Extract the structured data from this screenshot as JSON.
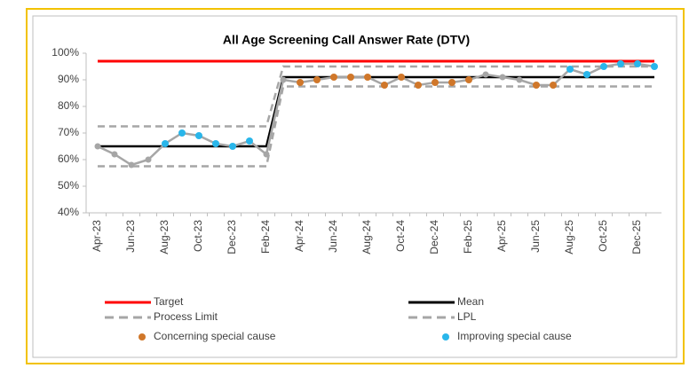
{
  "chart_data": {
    "type": "line",
    "title": "All Age Screening Call Answer Rate (DTV)",
    "categories": [
      "Apr-23",
      null,
      "Jun-23",
      null,
      "Aug-23",
      null,
      "Oct-23",
      null,
      "Dec-23",
      null,
      "Feb-24",
      null,
      "Apr-24",
      null,
      "Jun-24",
      null,
      "Aug-24",
      null,
      "Oct-24",
      null,
      "Dec-24",
      null,
      "Feb-25",
      null,
      "Apr-25",
      null,
      "Jun-25",
      null,
      "Aug-25",
      null,
      "Oct-25",
      null,
      "Dec-25",
      null
    ],
    "values": [
      65,
      62,
      58,
      60,
      66,
      70,
      69,
      66,
      65,
      67,
      62,
      90,
      89,
      90,
      91,
      91,
      91,
      88,
      91,
      88,
      89,
      89,
      90,
      92,
      91,
      90,
      88,
      88,
      94,
      92,
      95,
      96,
      96,
      95
    ],
    "color": "#a6a6a6",
    "series": [
      {
        "name": "Target",
        "color": "#ff0000",
        "style": "solid",
        "values": [
          97,
          97,
          97,
          97,
          97,
          97,
          97,
          97,
          97,
          97,
          97,
          97,
          97,
          97,
          97,
          97,
          97,
          97,
          97,
          97,
          97,
          97,
          97,
          97,
          97,
          97,
          97,
          97,
          97,
          97,
          97,
          97,
          97,
          97
        ]
      },
      {
        "name": "Mean",
        "color": "#000000",
        "style": "solid",
        "values": [
          65,
          65,
          65,
          65,
          65,
          65,
          65,
          65,
          65,
          65,
          65,
          91,
          91,
          91,
          91,
          91,
          91,
          91,
          91,
          91,
          91,
          91,
          91,
          91,
          91,
          91,
          91,
          91,
          91,
          91,
          91,
          91,
          91,
          91
        ]
      },
      {
        "name": "Process Limit",
        "color": "#a6a6a6",
        "style": "dashed",
        "values": [
          72.5,
          72.5,
          72.5,
          72.5,
          72.5,
          72.5,
          72.5,
          72.5,
          72.5,
          72.5,
          72.5,
          95,
          95,
          95,
          95,
          95,
          95,
          95,
          95,
          95,
          95,
          95,
          95,
          95,
          95,
          95,
          95,
          95,
          95,
          95,
          95,
          95,
          95,
          95
        ]
      },
      {
        "name": "LPL",
        "color": "#a6a6a6",
        "style": "dashed",
        "values": [
          57.5,
          57.5,
          57.5,
          57.5,
          57.5,
          57.5,
          57.5,
          57.5,
          57.5,
          57.5,
          57.5,
          87.5,
          87.5,
          87.5,
          87.5,
          87.5,
          87.5,
          87.5,
          87.5,
          87.5,
          87.5,
          87.5,
          87.5,
          87.5,
          87.5,
          87.5,
          87.5,
          87.5,
          87.5,
          87.5,
          87.5,
          87.5,
          87.5,
          87.5
        ]
      },
      {
        "name": "Concerning special cause",
        "color": "#d0772a",
        "style": "points",
        "values": [
          null,
          null,
          null,
          null,
          null,
          null,
          null,
          null,
          null,
          null,
          null,
          null,
          89,
          90,
          91,
          91,
          91,
          88,
          91,
          88,
          89,
          89,
          90,
          null,
          null,
          null,
          88,
          88,
          null,
          null,
          null,
          null,
          null,
          null
        ]
      },
      {
        "name": "Improving special cause",
        "color": "#29b6ea",
        "style": "points",
        "values": [
          null,
          null,
          null,
          null,
          66,
          70,
          69,
          66,
          65,
          67,
          null,
          null,
          null,
          null,
          null,
          null,
          null,
          null,
          null,
          null,
          null,
          null,
          null,
          null,
          null,
          null,
          null,
          null,
          94,
          92,
          95,
          96,
          96,
          95
        ]
      }
    ],
    "ylim": [
      40,
      100
    ],
    "yticks": [
      {
        "value": 40,
        "label": "40%"
      },
      {
        "value": 50,
        "label": "50%"
      },
      {
        "value": 60,
        "label": "60%"
      },
      {
        "value": 70,
        "label": "70%"
      },
      {
        "value": 80,
        "label": "80%"
      },
      {
        "value": 90,
        "label": "90%"
      },
      {
        "value": 100,
        "label": "100%"
      }
    ]
  }
}
